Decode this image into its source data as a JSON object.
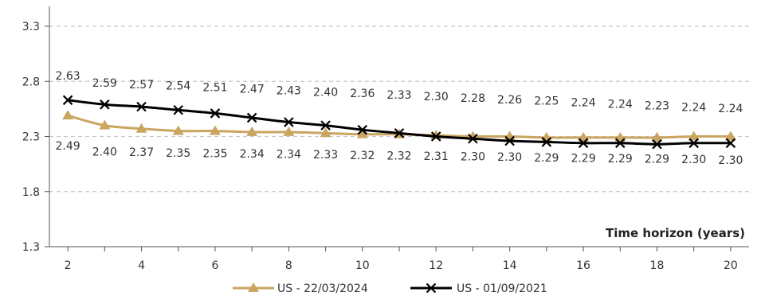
{
  "chart_data": {
    "type": "line",
    "title": "",
    "xlabel": "Time horizon (years)",
    "ylabel": "",
    "x": [
      2,
      3,
      4,
      5,
      6,
      7,
      8,
      9,
      10,
      11,
      12,
      13,
      14,
      15,
      16,
      17,
      18,
      19,
      20
    ],
    "x_ticks": [
      2,
      4,
      6,
      8,
      10,
      12,
      14,
      16,
      18,
      20
    ],
    "y_ticks": [
      1.3,
      1.8,
      2.3,
      2.8,
      3.3
    ],
    "xlim": [
      1.5,
      20.5
    ],
    "ylim": [
      1.3,
      3.3
    ],
    "grid": "horizontal-dashed",
    "legend_position": "bottom-center",
    "series": [
      {
        "name": "US - 22/03/2024",
        "marker": "triangle",
        "color": "#C9A560",
        "values": [
          2.49,
          2.4,
          2.37,
          2.35,
          2.35,
          2.34,
          2.34,
          2.33,
          2.32,
          2.32,
          2.31,
          2.3,
          2.3,
          2.29,
          2.29,
          2.29,
          2.29,
          2.3,
          2.3
        ],
        "label_position": "below"
      },
      {
        "name": "US - 01/09/2021",
        "marker": "x",
        "color": "#000000",
        "values": [
          2.63,
          2.59,
          2.57,
          2.54,
          2.51,
          2.47,
          2.43,
          2.4,
          2.36,
          2.33,
          2.3,
          2.28,
          2.26,
          2.25,
          2.24,
          2.24,
          2.23,
          2.24,
          2.24
        ],
        "label_position": "above"
      }
    ]
  }
}
